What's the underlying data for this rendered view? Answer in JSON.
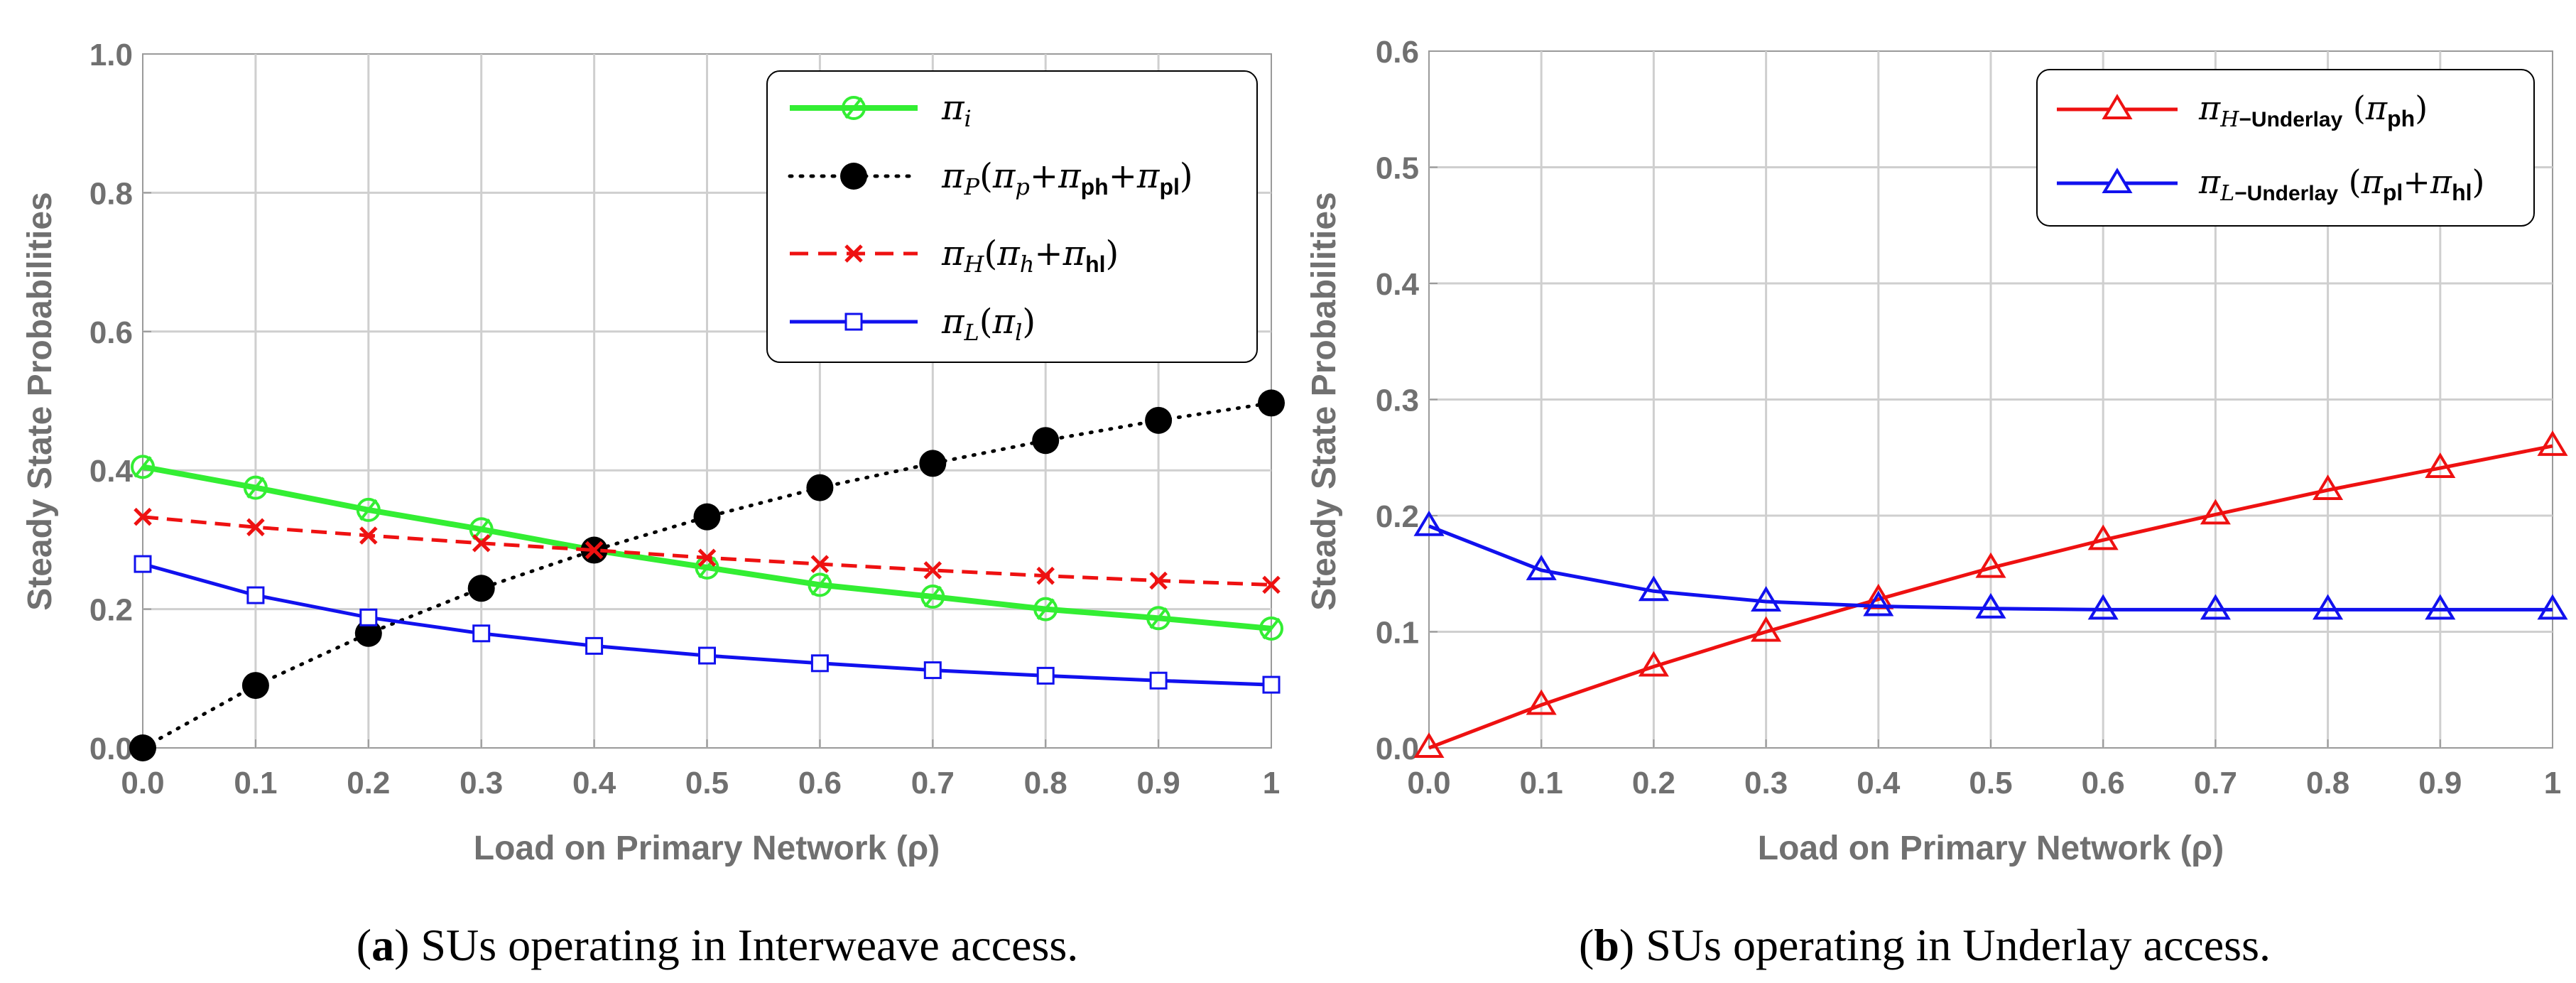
{
  "chart_data": [
    {
      "type": "line",
      "panel": "a",
      "caption_label": "a",
      "caption_text": "SUs operating in Interweave access.",
      "xlabel": "Load on Primary Network (ρ)",
      "ylabel": "Steady State Probabilities",
      "xlim": [
        0,
        1
      ],
      "ylim": [
        0,
        1
      ],
      "xticks": [
        "0.0",
        "0.1",
        "0.2",
        "0.3",
        "0.4",
        "0.5",
        "0.6",
        "0.7",
        "0.8",
        "0.9",
        "1"
      ],
      "yticks": [
        "0.0",
        "0.2",
        "0.4",
        "0.6",
        "0.8",
        "1.0"
      ],
      "grid": true,
      "legend_position": "top-right",
      "x": [
        0,
        0.1,
        0.2,
        0.3,
        0.4,
        0.5,
        0.6,
        0.7,
        0.8,
        0.9,
        1.0
      ],
      "series": [
        {
          "name": "π_i",
          "legend": "πi",
          "color": "#33ee33",
          "style": "solid",
          "marker": "circle-slash",
          "values": [
            0.405,
            0.375,
            0.343,
            0.315,
            0.285,
            0.26,
            0.235,
            0.218,
            0.2,
            0.187,
            0.172
          ]
        },
        {
          "name": "π_P(π_p+π_ph+π_pl)",
          "legend": "πP(πp+πph+πpl)",
          "color": "#000000",
          "style": "dotted",
          "marker": "filled-circle",
          "values": [
            0.0,
            0.09,
            0.165,
            0.23,
            0.285,
            0.333,
            0.375,
            0.41,
            0.443,
            0.472,
            0.497
          ]
        },
        {
          "name": "π_H(π_h+π_hl)",
          "legend": "πH(πh+πhl)",
          "color": "#ee1111",
          "style": "dashed",
          "marker": "x",
          "values": [
            0.333,
            0.318,
            0.306,
            0.295,
            0.285,
            0.274,
            0.265,
            0.256,
            0.248,
            0.241,
            0.235
          ]
        },
        {
          "name": "π_L(π_l)",
          "legend": "πL(πl)",
          "color": "#1111ee",
          "style": "solid",
          "marker": "square",
          "values": [
            0.265,
            0.22,
            0.188,
            0.165,
            0.147,
            0.133,
            0.122,
            0.112,
            0.104,
            0.097,
            0.091
          ]
        }
      ]
    },
    {
      "type": "line",
      "panel": "b",
      "caption_label": "b",
      "caption_text": "SUs operating in Underlay access.",
      "xlabel": "Load on Primary Network (ρ)",
      "ylabel": "Steady State Probabilities",
      "xlim": [
        0,
        1
      ],
      "ylim": [
        0,
        0.6
      ],
      "xticks": [
        "0.0",
        "0.1",
        "0.2",
        "0.3",
        "0.4",
        "0.5",
        "0.6",
        "0.7",
        "0.8",
        "0.9",
        "1"
      ],
      "yticks": [
        "0.0",
        "0.1",
        "0.2",
        "0.3",
        "0.4",
        "0.5",
        "0.6"
      ],
      "grid": true,
      "legend_position": "top-right",
      "x": [
        0,
        0.1,
        0.2,
        0.3,
        0.4,
        0.5,
        0.6,
        0.7,
        0.8,
        0.9,
        1.0
      ],
      "series": [
        {
          "name": "π_H-Underlay (π_ph)",
          "legend": "πH−Underlay (πph)",
          "color": "#ee1111",
          "style": "solid",
          "marker": "triangle",
          "values": [
            0.0,
            0.037,
            0.07,
            0.1,
            0.128,
            0.155,
            0.179,
            0.201,
            0.222,
            0.241,
            0.26
          ]
        },
        {
          "name": "π_L-Underlay (π_pl+π_hl)",
          "legend": "πL−Underlay (πpl+πhl)",
          "color": "#1111ee",
          "style": "solid",
          "marker": "triangle",
          "values": [
            0.191,
            0.153,
            0.135,
            0.126,
            0.122,
            0.12,
            0.119,
            0.119,
            0.119,
            0.119,
            0.119
          ]
        }
      ]
    }
  ]
}
